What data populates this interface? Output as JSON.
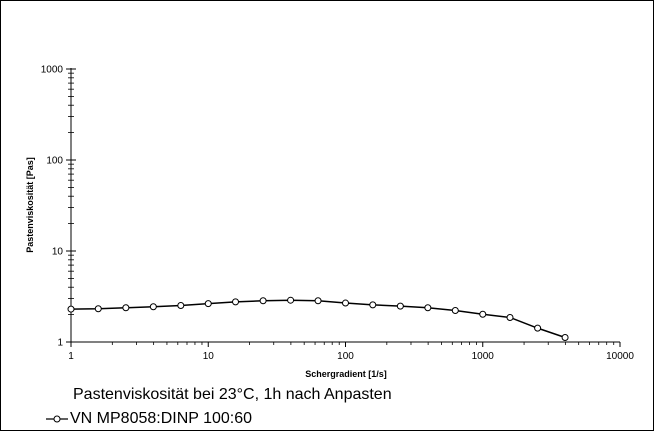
{
  "chart_data": {
    "type": "line",
    "title": "Pastenviskosität bei 23°C, 1h nach Anpasten",
    "xlabel": "Schergradient  [1/s]",
    "ylabel": "Pastenviskosität  [Pas]",
    "xscale": "log",
    "yscale": "log",
    "xlim": [
      1,
      10000
    ],
    "ylim": [
      1,
      1000
    ],
    "x_ticks": [
      "1",
      "10",
      "100",
      "1000",
      "10000"
    ],
    "y_ticks": [
      "1",
      "10",
      "100",
      "1000"
    ],
    "grid": false,
    "legend_position": "bottom-left",
    "series": [
      {
        "name": "VN  MP8058:DINP  100:60",
        "marker": "open-circle",
        "color": "#000000",
        "x": [
          1,
          1.58,
          2.51,
          3.98,
          6.31,
          10,
          15.8,
          25.1,
          39.8,
          63.1,
          100,
          158,
          251,
          398,
          631,
          1000,
          1580,
          2510,
          3980
        ],
        "y": [
          2.3,
          2.32,
          2.38,
          2.44,
          2.52,
          2.64,
          2.76,
          2.84,
          2.88,
          2.84,
          2.68,
          2.56,
          2.48,
          2.38,
          2.22,
          2.02,
          1.86,
          1.42,
          1.12
        ]
      }
    ]
  }
}
